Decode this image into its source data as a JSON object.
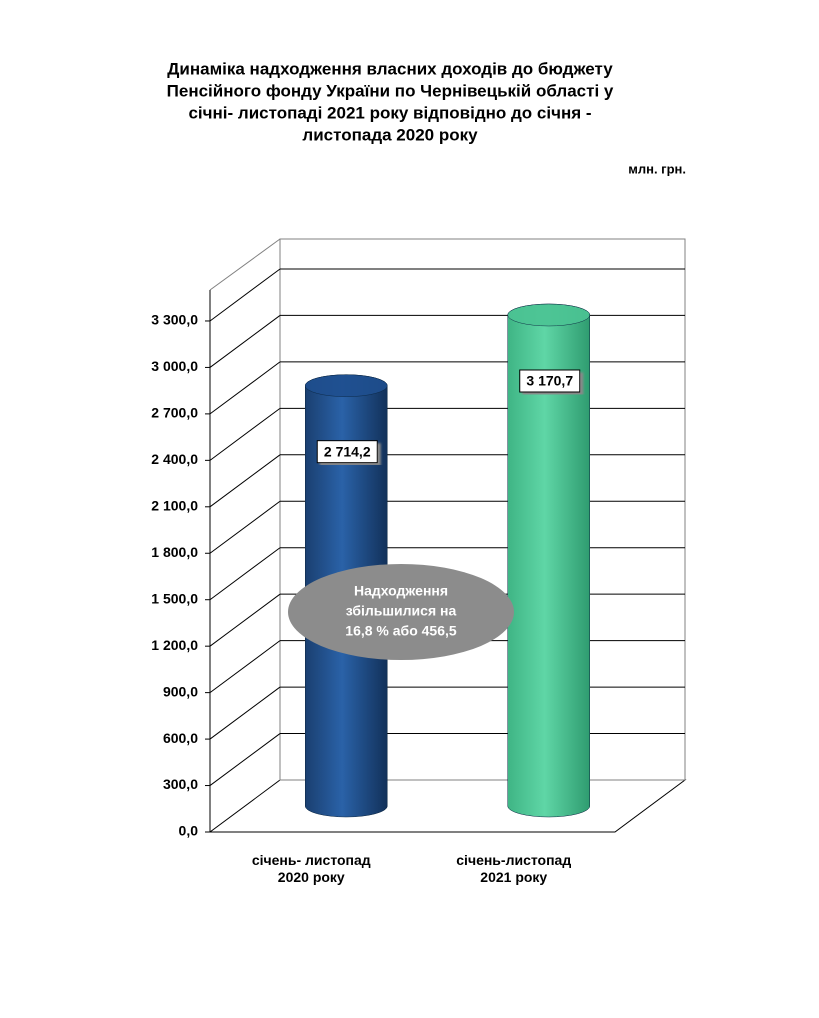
{
  "chart_data": {
    "type": "cylinder",
    "title": [
      "Динаміка надходження власних доходів до  бюджету",
      "Пенсійного фонду України по Чернівецькій області у",
      "січні- листопаді 2021 року  відповідно до січня -",
      "листопада 2020 року"
    ],
    "unit_label": "млн. грн.",
    "categories": [
      "січень- листопад 2020 року",
      "січень-листопад 2021 року"
    ],
    "series": [
      {
        "colors": [
          "#1f4f8f",
          "#4cc494"
        ],
        "values": [
          2714.2,
          3170.7
        ],
        "value_labels": [
          "2 714,2",
          "3 170,7"
        ]
      }
    ],
    "ylim": [
      0,
      3500
    ],
    "yticks": [
      {
        "value": 0,
        "label": "0,0"
      },
      {
        "value": 300,
        "label": "300,0"
      },
      {
        "value": 600,
        "label": "600,0"
      },
      {
        "value": 900,
        "label": "900,0"
      },
      {
        "value": 1200,
        "label": "1 200,0"
      },
      {
        "value": 1500,
        "label": "1 500,0"
      },
      {
        "value": 1800,
        "label": "1 800,0"
      },
      {
        "value": 2100,
        "label": "2 100,0"
      },
      {
        "value": 2400,
        "label": "2 400,0"
      },
      {
        "value": 2700,
        "label": "2 700,0"
      },
      {
        "value": 3000,
        "label": "3 000,0"
      },
      {
        "value": 3300,
        "label": "3 300,0"
      }
    ],
    "grid": true,
    "annotation": [
      "Надходження",
      "збільшилися на",
      "16,8 %  або 456,5"
    ]
  }
}
